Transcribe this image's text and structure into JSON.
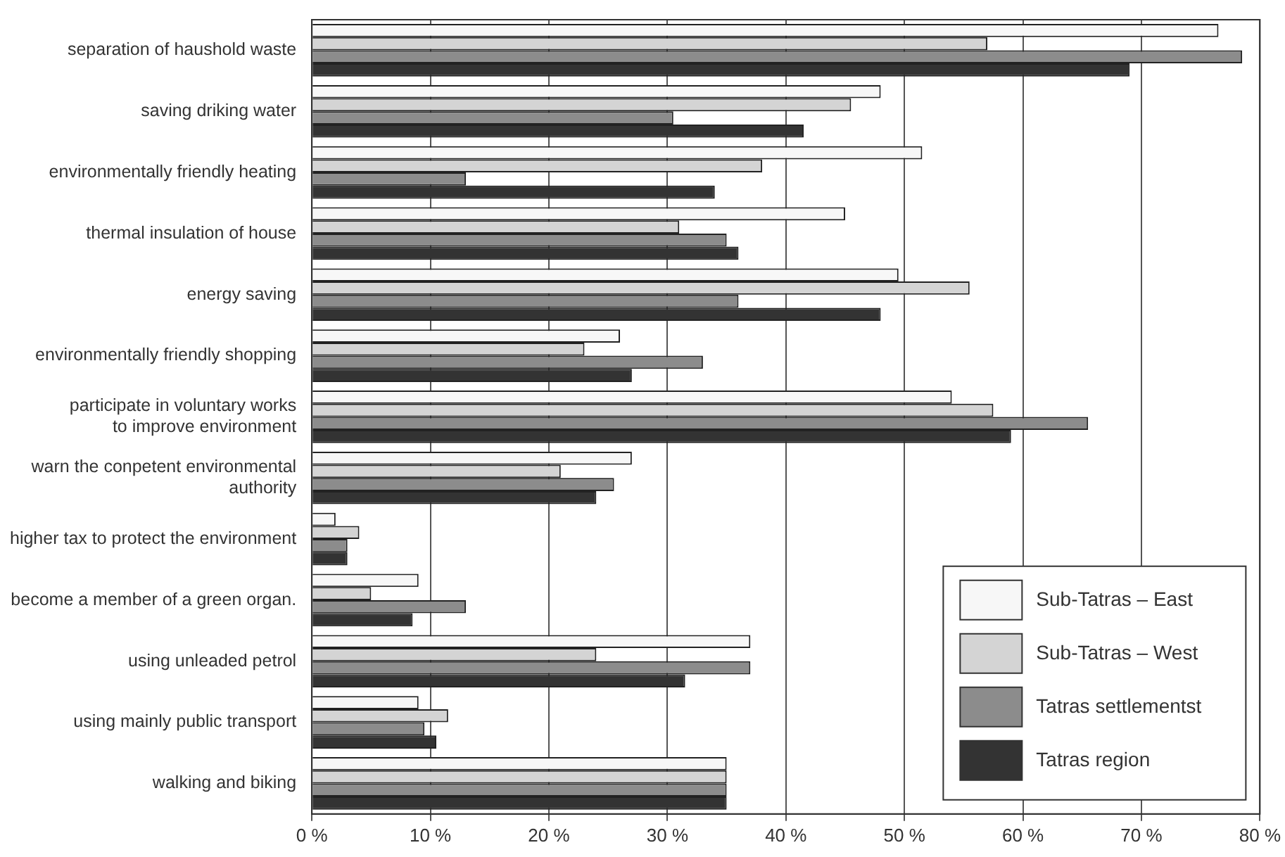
{
  "chart_data": {
    "type": "bar",
    "orientation": "horizontal",
    "categories": [
      "separation of haushold waste",
      "saving driking water",
      "environmentally friendly heating",
      "thermal insulation of house",
      "energy saving",
      "environmentally friendly shopping",
      "participate in voluntary works\nto improve environment",
      "warn the conpetent environmental\nauthority",
      "higher tax to protect the environment",
      "become a member of a green organ.",
      "using unleaded petrol",
      "using mainly public transport",
      "walking and biking"
    ],
    "series": [
      {
        "name": "Sub-Tatras – East",
        "color": "#f7f7f7",
        "values": [
          76.5,
          48,
          51.5,
          45,
          49.5,
          26,
          54,
          27,
          2,
          9,
          37,
          9,
          35
        ]
      },
      {
        "name": "Sub-Tatras – West",
        "color": "#d4d4d4",
        "values": [
          57,
          45.5,
          38,
          31,
          55.5,
          23,
          57.5,
          21,
          4,
          5,
          24,
          11.5,
          35
        ]
      },
      {
        "name": "Tatras settlementst",
        "color": "#8c8c8c",
        "values": [
          78.5,
          30.5,
          13,
          35,
          36,
          33,
          65.5,
          25.5,
          3,
          13,
          37,
          9.5,
          35
        ]
      },
      {
        "name": "Tatras region",
        "color": "#333333",
        "values": [
          69,
          41.5,
          34,
          36,
          48,
          27,
          59,
          24,
          3,
          8.5,
          31.5,
          10.5,
          35
        ]
      }
    ],
    "xlim": [
      0,
      80
    ],
    "xticks": [
      {
        "value": 0,
        "label": "0 %"
      },
      {
        "value": 10,
        "label": "10 %"
      },
      {
        "value": 20,
        "label": "20 %"
      },
      {
        "value": 30,
        "label": "30 %"
      },
      {
        "value": 40,
        "label": "40 %"
      },
      {
        "value": 50,
        "label": "50 %"
      },
      {
        "value": 60,
        "label": "60 %"
      },
      {
        "value": 70,
        "label": "70 %"
      },
      {
        "value": 80,
        "label": "80 %"
      }
    ],
    "grid": "x",
    "legend": "bottom right"
  }
}
